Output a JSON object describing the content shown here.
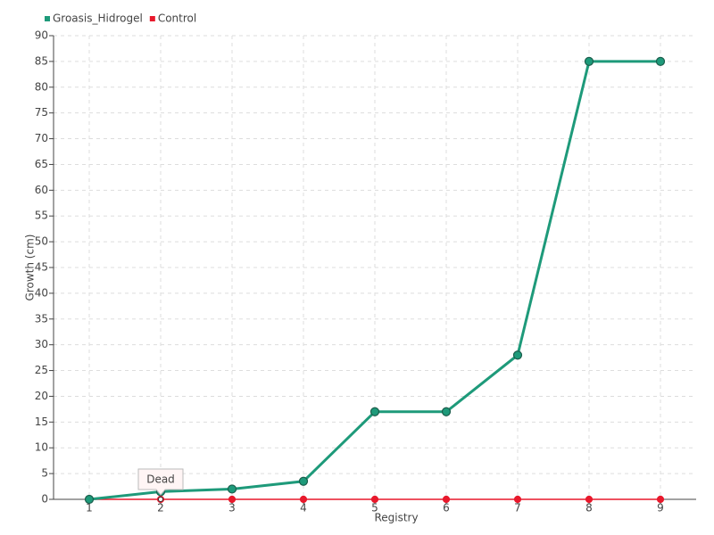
{
  "chart_data": {
    "type": "line",
    "x_label": "Registry",
    "y_label": "Growth (cm)",
    "categories": [
      "1",
      "2",
      "3",
      "4",
      "5",
      "6",
      "7",
      "8",
      "9"
    ],
    "series": [
      {
        "name": "Groasis_Hidrogel",
        "color": "#1e9a7a",
        "values": [
          0,
          1.5,
          2,
          3.5,
          17,
          17,
          28,
          85,
          85
        ]
      },
      {
        "name": "Control",
        "color": "#e8192c",
        "values": [
          0,
          0,
          0,
          0,
          0,
          0,
          0,
          0,
          0
        ]
      }
    ],
    "annotations": [
      {
        "text": "Dead",
        "x": "2",
        "series": "Control"
      }
    ],
    "ylim": [
      0,
      90
    ],
    "yticks": [
      0,
      5,
      10,
      15,
      20,
      25,
      30,
      35,
      40,
      45,
      50,
      55,
      60,
      65,
      70,
      75,
      80,
      85,
      90
    ],
    "grid": true,
    "legend": "top-left"
  }
}
